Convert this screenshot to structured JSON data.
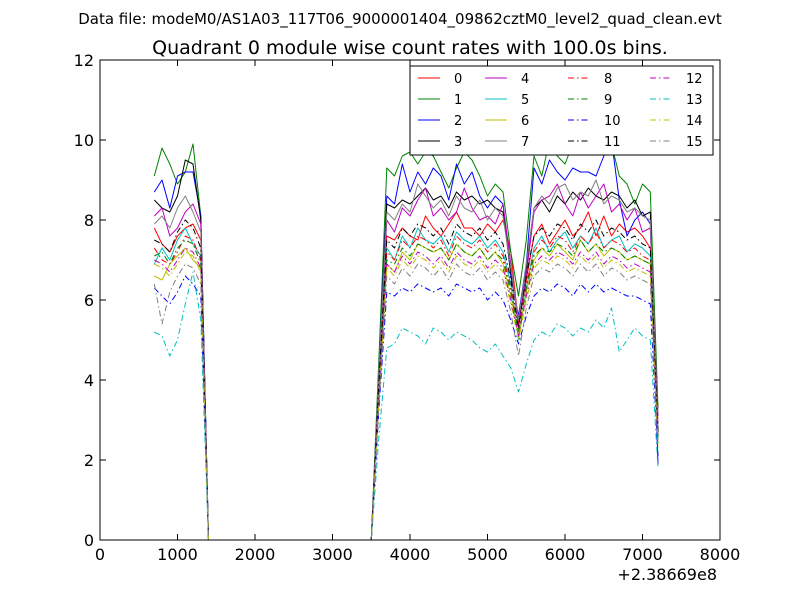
{
  "figure": {
    "suptitle": "Data file: modeM0/AS1A03_117T06_9000001404_09862cztM0_level2_quad_clean.evt",
    "x_offset_label": "+2.38669e8"
  },
  "chart_data": {
    "type": "line",
    "title": "Quadrant 0 module wise count rates with 100.0s bins.",
    "xlabel": "",
    "ylabel": "",
    "xlim": [
      0,
      8000
    ],
    "ylim": [
      0,
      12
    ],
    "x_ticks": [
      0,
      1000,
      2000,
      3000,
      4000,
      5000,
      6000,
      7000,
      8000
    ],
    "y_ticks": [
      0,
      2,
      4,
      6,
      8,
      10,
      12
    ],
    "grid": false,
    "legend_position": "top-right",
    "x": [
      700,
      800,
      900,
      1000,
      1100,
      1200,
      1300,
      1400,
      1450,
      3500,
      3600,
      3700,
      3800,
      3900,
      4000,
      4100,
      4200,
      4300,
      4400,
      4500,
      4600,
      4700,
      4800,
      4900,
      5000,
      5100,
      5200,
      5300,
      5400,
      5500,
      5600,
      5700,
      5800,
      5900,
      6000,
      6100,
      6200,
      6300,
      6400,
      6500,
      6600,
      6700,
      6800,
      6900,
      7000,
      7100,
      7200
    ],
    "series": [
      {
        "name": "0",
        "color": "#ff0000",
        "dash": "solid",
        "values": [
          7.8,
          7.4,
          7.2,
          7.6,
          7.8,
          7.9,
          7.5,
          0.0,
          0.0,
          0.0,
          4.0,
          7.6,
          7.5,
          7.8,
          7.6,
          7.5,
          8.1,
          7.8,
          7.6,
          7.9,
          8.2,
          7.8,
          7.8,
          7.6,
          7.9,
          7.7,
          8.0,
          7.2,
          5.4,
          6.5,
          7.6,
          7.9,
          7.4,
          7.7,
          8.0,
          7.6,
          7.8,
          8.2,
          7.6,
          8.1,
          7.6,
          7.9,
          7.7,
          7.8,
          7.6,
          7.3,
          2.9
        ]
      },
      {
        "name": "1",
        "color": "#008000",
        "dash": "solid",
        "values": [
          9.1,
          9.8,
          9.4,
          8.9,
          9.2,
          9.9,
          8.1,
          0.0,
          0.0,
          0.0,
          4.6,
          9.3,
          9.1,
          9.6,
          9.7,
          9.4,
          9.7,
          9.6,
          9.2,
          8.8,
          9.3,
          9.7,
          9.5,
          9.1,
          8.6,
          8.9,
          8.7,
          7.2,
          6.1,
          7.5,
          9.6,
          9.1,
          10.0,
          9.6,
          9.4,
          9.9,
          10.0,
          9.9,
          10.7,
          10.3,
          9.9,
          9.1,
          8.9,
          8.4,
          8.9,
          8.7,
          3.3
        ]
      },
      {
        "name": "2",
        "color": "#0000ff",
        "dash": "solid",
        "values": [
          8.7,
          9.0,
          8.3,
          9.1,
          9.2,
          9.2,
          8.1,
          0.0,
          0.0,
          0.0,
          4.3,
          8.6,
          8.4,
          9.4,
          8.7,
          9.2,
          8.9,
          9.3,
          9.1,
          8.5,
          9.4,
          8.9,
          9.2,
          8.6,
          8.3,
          8.6,
          8.4,
          6.6,
          5.6,
          6.9,
          9.3,
          8.9,
          9.5,
          9.2,
          9.0,
          9.3,
          9.2,
          9.2,
          9.1,
          9.6,
          10.0,
          8.5,
          7.6,
          8.0,
          8.2,
          7.9,
          1.9
        ]
      },
      {
        "name": "3",
        "color": "#000000",
        "dash": "solid",
        "values": [
          8.5,
          8.3,
          8.2,
          8.6,
          9.5,
          9.4,
          8.0,
          0.0,
          0.0,
          0.0,
          4.2,
          8.4,
          8.3,
          8.5,
          8.4,
          8.6,
          8.8,
          8.5,
          8.6,
          8.3,
          8.7,
          8.5,
          8.6,
          8.4,
          8.5,
          8.3,
          8.2,
          6.7,
          5.5,
          6.8,
          8.3,
          8.5,
          8.2,
          8.6,
          8.4,
          8.7,
          8.5,
          8.8,
          8.6,
          8.5,
          8.7,
          8.6,
          8.3,
          8.5,
          8.1,
          8.2,
          2.6
        ]
      },
      {
        "name": "4",
        "color": "#bf00bf",
        "dash": "solid",
        "values": [
          8.1,
          8.3,
          7.6,
          7.8,
          8.2,
          8.4,
          7.9,
          0.0,
          0.0,
          0.0,
          4.1,
          8.0,
          7.7,
          8.3,
          8.1,
          8.5,
          8.8,
          8.1,
          8.3,
          8.0,
          8.2,
          8.8,
          8.3,
          8.0,
          8.1,
          7.9,
          8.4,
          6.9,
          5.3,
          6.6,
          8.2,
          8.5,
          8.6,
          8.9,
          8.4,
          8.1,
          8.7,
          8.3,
          8.6,
          8.9,
          8.2,
          8.4,
          8.0,
          8.3,
          7.7,
          7.8,
          3.1
        ]
      },
      {
        "name": "5",
        "color": "#00bfbf",
        "dash": "solid",
        "values": [
          6.9,
          7.3,
          7.0,
          7.5,
          7.8,
          7.4,
          7.1,
          0.0,
          0.0,
          0.0,
          3.8,
          7.3,
          7.0,
          7.6,
          7.3,
          7.8,
          7.5,
          7.4,
          7.6,
          7.2,
          7.7,
          7.5,
          7.4,
          7.6,
          7.3,
          7.5,
          7.2,
          6.4,
          5.0,
          6.3,
          7.3,
          7.6,
          7.2,
          7.5,
          7.7,
          7.3,
          7.6,
          7.4,
          7.8,
          7.3,
          7.5,
          7.6,
          7.2,
          7.4,
          7.3,
          7.1,
          2.5
        ]
      },
      {
        "name": "6",
        "color": "#bfbf00",
        "dash": "solid",
        "values": [
          6.6,
          6.5,
          6.9,
          7.1,
          7.3,
          7.0,
          6.8,
          0.0,
          0.0,
          0.0,
          3.6,
          6.9,
          6.7,
          7.2,
          7.0,
          7.4,
          7.3,
          7.2,
          7.3,
          7.0,
          7.4,
          7.2,
          7.1,
          7.3,
          7.0,
          7.2,
          6.9,
          6.1,
          5.1,
          6.2,
          7.0,
          7.3,
          7.1,
          7.4,
          7.2,
          7.0,
          7.5,
          7.2,
          7.4,
          7.1,
          7.3,
          7.2,
          7.0,
          7.1,
          7.0,
          6.9,
          2.4
        ]
      },
      {
        "name": "7",
        "color": "#808080",
        "dash": "solid",
        "values": [
          7.9,
          8.1,
          7.8,
          8.3,
          8.6,
          8.2,
          7.7,
          0.0,
          0.0,
          0.0,
          4.3,
          8.2,
          8.0,
          8.4,
          8.2,
          8.9,
          8.6,
          8.3,
          8.5,
          8.1,
          8.6,
          8.3,
          8.2,
          8.5,
          8.0,
          8.3,
          8.1,
          6.8,
          5.5,
          6.9,
          8.3,
          8.6,
          8.4,
          8.8,
          8.9,
          8.5,
          8.7,
          8.6,
          9.0,
          8.4,
          8.6,
          8.5,
          8.2,
          8.3,
          8.1,
          8.0,
          2.8
        ]
      },
      {
        "name": "8",
        "color": "#ff0000",
        "dash": "dashdot",
        "values": [
          7.3,
          7.0,
          6.9,
          7.2,
          7.6,
          7.5,
          7.0,
          0.0,
          0.0,
          0.0,
          3.8,
          7.2,
          7.0,
          7.5,
          7.3,
          7.6,
          7.5,
          7.3,
          7.5,
          7.1,
          7.6,
          7.4,
          7.3,
          7.5,
          7.2,
          7.4,
          7.1,
          6.3,
          5.2,
          6.4,
          7.2,
          7.5,
          7.3,
          7.6,
          7.5,
          7.2,
          7.6,
          7.4,
          7.7,
          7.3,
          7.5,
          7.4,
          7.2,
          7.3,
          7.1,
          7.0,
          2.6
        ]
      },
      {
        "name": "9",
        "color": "#008000",
        "dash": "dashdot",
        "values": [
          7.1,
          7.2,
          6.9,
          7.3,
          7.5,
          7.4,
          6.9,
          0.0,
          0.0,
          0.0,
          3.7,
          7.0,
          6.9,
          7.3,
          7.1,
          7.4,
          7.3,
          7.2,
          7.3,
          7.0,
          7.4,
          7.2,
          7.1,
          7.3,
          7.0,
          7.2,
          7.0,
          6.2,
          5.2,
          6.3,
          7.1,
          7.3,
          7.2,
          7.4,
          7.3,
          7.1,
          7.5,
          7.2,
          7.4,
          7.2,
          7.3,
          7.2,
          7.0,
          7.1,
          7.0,
          6.9,
          2.5
        ]
      },
      {
        "name": "10",
        "color": "#0000ff",
        "dash": "dashdot",
        "values": [
          6.3,
          6.1,
          5.9,
          6.2,
          6.6,
          6.4,
          6.1,
          0.0,
          0.0,
          0.0,
          3.3,
          6.2,
          6.1,
          6.3,
          6.2,
          6.4,
          6.3,
          6.2,
          6.3,
          6.1,
          6.4,
          6.3,
          6.2,
          6.3,
          6.0,
          6.2,
          6.0,
          5.5,
          4.9,
          5.6,
          6.1,
          6.3,
          6.2,
          6.4,
          6.3,
          6.1,
          6.4,
          6.2,
          6.4,
          6.2,
          6.3,
          6.2,
          6.1,
          6.1,
          6.0,
          5.9,
          2.1
        ]
      },
      {
        "name": "11",
        "color": "#000000",
        "dash": "dashdot",
        "values": [
          7.5,
          7.4,
          7.2,
          7.7,
          8.0,
          7.8,
          7.3,
          0.0,
          0.0,
          0.0,
          4.0,
          7.5,
          7.3,
          7.8,
          7.6,
          7.9,
          7.8,
          7.6,
          7.8,
          7.4,
          7.9,
          7.7,
          7.6,
          7.8,
          7.5,
          7.7,
          7.4,
          6.5,
          5.3,
          6.6,
          7.6,
          7.8,
          7.6,
          7.9,
          7.8,
          7.5,
          7.9,
          7.7,
          8.0,
          7.6,
          7.8,
          7.7,
          7.5,
          7.6,
          7.4,
          7.3,
          2.7
        ]
      },
      {
        "name": "12",
        "color": "#bf00bf",
        "dash": "dashdot",
        "values": [
          7.0,
          6.9,
          6.7,
          7.0,
          7.3,
          7.2,
          6.8,
          0.0,
          0.0,
          0.0,
          3.6,
          6.9,
          6.7,
          7.1,
          6.9,
          7.2,
          7.1,
          6.9,
          7.1,
          6.8,
          7.2,
          7.0,
          6.9,
          7.1,
          6.8,
          7.0,
          6.8,
          6.0,
          5.1,
          6.1,
          6.9,
          7.1,
          7.0,
          7.2,
          7.1,
          6.9,
          7.2,
          7.0,
          7.2,
          6.9,
          7.1,
          7.0,
          6.8,
          6.9,
          6.8,
          6.7,
          2.4
        ]
      },
      {
        "name": "13",
        "color": "#00bfbf",
        "dash": "dashdot",
        "values": [
          5.2,
          5.1,
          4.6,
          5.0,
          5.9,
          6.7,
          5.5,
          0.0,
          0.0,
          0.0,
          2.6,
          4.8,
          4.9,
          5.3,
          5.2,
          5.1,
          4.9,
          5.3,
          5.2,
          5.0,
          5.2,
          5.1,
          5.0,
          4.8,
          4.7,
          4.9,
          4.6,
          4.3,
          3.7,
          4.4,
          5.0,
          5.2,
          5.1,
          5.4,
          5.3,
          5.1,
          5.3,
          5.2,
          5.5,
          5.3,
          5.8,
          4.7,
          5.0,
          5.3,
          5.1,
          5.0,
          1.8
        ]
      },
      {
        "name": "14",
        "color": "#bfbf00",
        "dash": "dashdot",
        "values": [
          6.9,
          6.8,
          6.6,
          6.9,
          7.2,
          7.1,
          6.7,
          0.0,
          0.0,
          0.0,
          3.5,
          6.8,
          6.6,
          7.0,
          6.8,
          7.1,
          7.0,
          6.8,
          7.0,
          6.7,
          7.1,
          6.9,
          6.8,
          7.0,
          6.7,
          6.9,
          6.7,
          5.9,
          5.0,
          6.0,
          6.8,
          7.0,
          6.9,
          7.1,
          7.0,
          6.8,
          7.1,
          6.9,
          7.1,
          6.8,
          7.0,
          6.9,
          6.7,
          6.8,
          6.7,
          6.6,
          2.4
        ]
      },
      {
        "name": "15",
        "color": "#808080",
        "dash": "dashdot",
        "values": [
          6.4,
          5.4,
          6.2,
          6.6,
          6.9,
          6.8,
          6.4,
          0.0,
          0.0,
          0.0,
          3.4,
          6.6,
          6.4,
          6.8,
          6.6,
          6.9,
          6.8,
          6.6,
          6.8,
          6.5,
          6.9,
          6.7,
          6.6,
          6.8,
          6.5,
          6.7,
          6.5,
          5.7,
          4.6,
          5.8,
          6.6,
          6.8,
          6.7,
          6.9,
          6.8,
          6.6,
          6.9,
          6.7,
          6.9,
          6.6,
          6.8,
          6.7,
          6.5,
          6.6,
          6.5,
          6.4,
          2.3
        ]
      }
    ]
  }
}
